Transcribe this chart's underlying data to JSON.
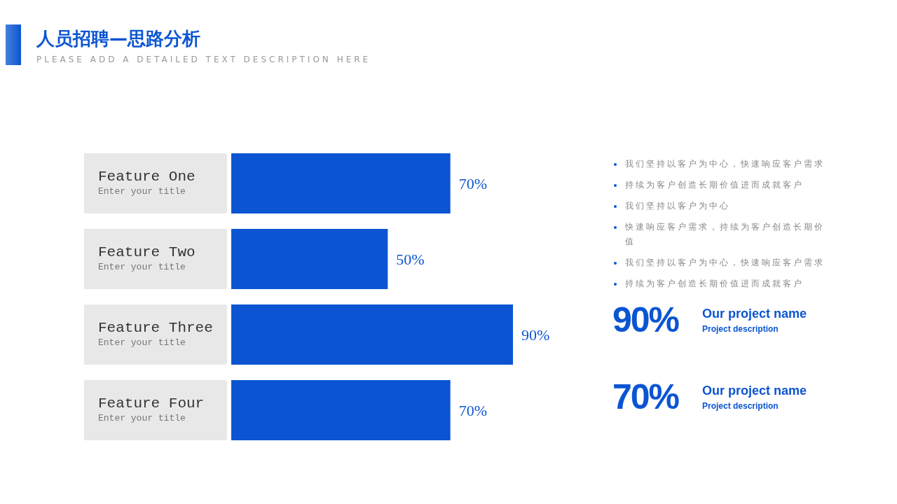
{
  "chart_data": [
    {
      "type": "bar",
      "title": "人员招聘—思路分析",
      "subtitle": "PLEASE ADD A DETAILED TEXT DESCRIPTION HERE",
      "orientation": "horizontal",
      "categories": [
        "Feature One",
        "Feature Two",
        "Feature Three",
        "Feature Four"
      ],
      "values": [
        70,
        50,
        90,
        70
      ],
      "value_labels": [
        "70%",
        "50%",
        "90%",
        "70%"
      ],
      "color": "#0b55d2",
      "tick_labels": "y",
      "annotations": [
        "Enter your title",
        "Enter your title",
        "Enter your title",
        "Enter your title"
      ]
    },
    {
      "type": "other",
      "annotations": [
        "我们坚持以客户为中心，快速响应客户需求",
        "持续为客户创造长期价值进而成就客户",
        "我们坚持以客户为中心",
        "快速响应客户需求，持续为客户创造长期价值",
        "我们坚持以客户为中心，快速响应客户需求",
        "持续为客户创造长期价值进而成就客户",
        "90%",
        "Our project name",
        "Project description",
        "70%",
        "Our project name",
        "Project description"
      ]
    }
  ]
}
